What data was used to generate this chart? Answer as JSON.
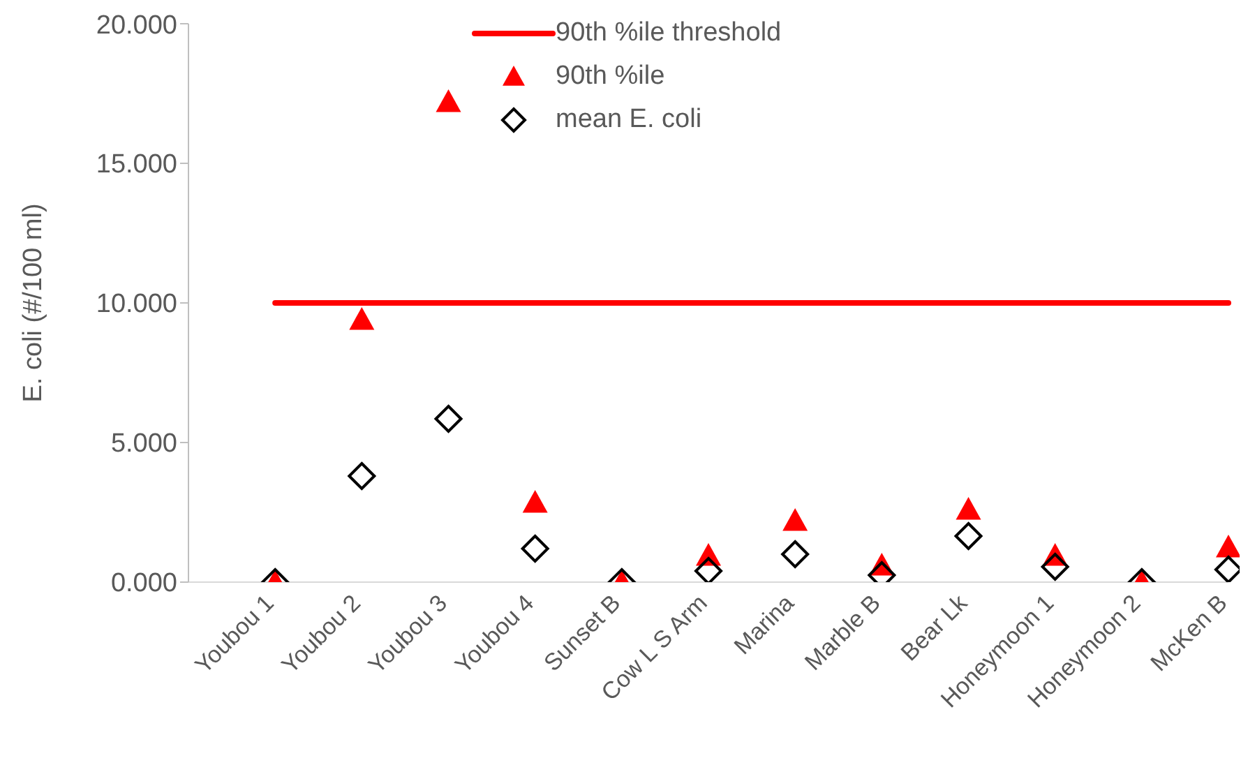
{
  "chart_data": {
    "type": "scatter",
    "ylabel": "E. coli (#/100 ml)",
    "categories": [
      "Youbou 1",
      "Youbou 2",
      "Youbou 3",
      "Youbou 4",
      "Sunset B",
      "Cow L S Arm",
      "Marina",
      "Marble B",
      "Bear Lk",
      "Honeymoon 1",
      "Honeymoon 2",
      "McKen B"
    ],
    "series": [
      {
        "name": "90th %ile threshold",
        "type": "line",
        "color": "#ff0000",
        "line_style": "solid",
        "marker": "none",
        "values": [
          10,
          10,
          10,
          10,
          10,
          10,
          10,
          10,
          10,
          10,
          10,
          10
        ]
      },
      {
        "name": "90th %ile",
        "color": "#ff0000",
        "marker": "triangle",
        "values": [
          0,
          9.4,
          17.2,
          2.85,
          0,
          0.95,
          2.2,
          0.6,
          2.6,
          0.95,
          0,
          1.25
        ]
      },
      {
        "name": "mean E. coli",
        "color": "#000000",
        "marker": "diamond",
        "values": [
          0,
          3.8,
          5.85,
          1.2,
          0,
          0.4,
          1.0,
          0.25,
          1.65,
          0.55,
          0,
          0.45
        ]
      }
    ],
    "ylim": [
      0,
      20
    ],
    "yticks": [
      {
        "value": 0,
        "label": "0.000"
      },
      {
        "value": 5,
        "label": "5.000"
      },
      {
        "value": 10,
        "label": "10.000"
      },
      {
        "value": 15,
        "label": "15.000"
      },
      {
        "value": 20,
        "label": "20.000"
      }
    ],
    "grid": false,
    "legend": "top"
  }
}
